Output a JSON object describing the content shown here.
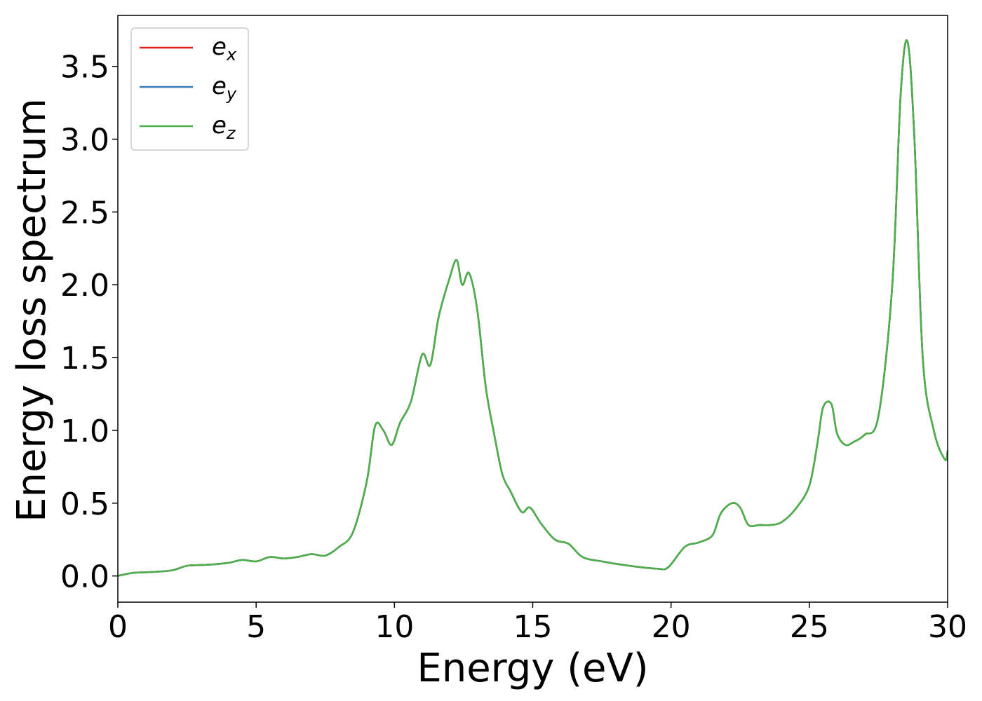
{
  "chart_data": {
    "type": "line",
    "xlabel": "Energy (eV)",
    "ylabel": "Energy loss spectrum",
    "xlim": [
      0,
      30
    ],
    "ylim": [
      -0.18,
      3.85
    ],
    "xticks": [
      0,
      5,
      10,
      15,
      20,
      25,
      30
    ],
    "xtick_labels": [
      "0",
      "5",
      "10",
      "15",
      "20",
      "25",
      "30"
    ],
    "yticks": [
      0.0,
      0.5,
      1.0,
      1.5,
      2.0,
      2.5,
      3.0,
      3.5
    ],
    "ytick_labels": [
      "0.0",
      "0.5",
      "1.0",
      "1.5",
      "2.0",
      "2.5",
      "3.0",
      "3.5"
    ],
    "grid": false,
    "legend_position": "top-left",
    "x": [
      0,
      0.5,
      1,
      1.5,
      2,
      2.5,
      3,
      3.5,
      4,
      4.5,
      5,
      5.5,
      6,
      6.5,
      7,
      7.5,
      8,
      8.5,
      9,
      9.3,
      9.6,
      9.9,
      10.2,
      10.6,
      11,
      11.3,
      11.6,
      12,
      12.25,
      12.45,
      12.7,
      13,
      13.3,
      13.6,
      13.9,
      14.2,
      14.6,
      14.9,
      15.3,
      15.8,
      16.3,
      16.8,
      17.5,
      18.5,
      19.5,
      19.9,
      20.5,
      21,
      21.5,
      21.8,
      22.2,
      22.5,
      22.8,
      23.2,
      23.6,
      24,
      24.5,
      25,
      25.3,
      25.5,
      25.8,
      26,
      26.3,
      26.6,
      27,
      27.5,
      28,
      28.3,
      28.55,
      28.8,
      29.1,
      29.5,
      29.9,
      30
    ],
    "series": [
      {
        "name": "e_x",
        "color": "#e41a1c",
        "values": [
          0.0,
          0.02,
          0.025,
          0.03,
          0.04,
          0.07,
          0.075,
          0.08,
          0.09,
          0.11,
          0.1,
          0.13,
          0.12,
          0.13,
          0.15,
          0.14,
          0.2,
          0.3,
          0.65,
          1.03,
          1.0,
          0.9,
          1.05,
          1.2,
          1.52,
          1.45,
          1.78,
          2.05,
          2.17,
          2.0,
          2.08,
          1.82,
          1.3,
          0.98,
          0.7,
          0.58,
          0.44,
          0.47,
          0.36,
          0.25,
          0.22,
          0.13,
          0.1,
          0.07,
          0.05,
          0.06,
          0.2,
          0.23,
          0.28,
          0.43,
          0.5,
          0.47,
          0.35,
          0.35,
          0.35,
          0.37,
          0.46,
          0.62,
          0.92,
          1.16,
          1.18,
          0.98,
          0.9,
          0.92,
          0.97,
          1.1,
          2.0,
          3.3,
          3.67,
          3.0,
          1.5,
          1.0,
          0.8,
          0.86
        ]
      },
      {
        "name": "e_y",
        "color": "#377eb8",
        "values": [
          0.0,
          0.02,
          0.025,
          0.03,
          0.04,
          0.07,
          0.075,
          0.08,
          0.09,
          0.11,
          0.1,
          0.13,
          0.12,
          0.13,
          0.15,
          0.14,
          0.2,
          0.3,
          0.65,
          1.03,
          1.0,
          0.9,
          1.05,
          1.2,
          1.52,
          1.45,
          1.78,
          2.05,
          2.17,
          2.0,
          2.08,
          1.82,
          1.3,
          0.98,
          0.7,
          0.58,
          0.44,
          0.47,
          0.36,
          0.25,
          0.22,
          0.13,
          0.1,
          0.07,
          0.05,
          0.06,
          0.2,
          0.23,
          0.28,
          0.43,
          0.5,
          0.47,
          0.35,
          0.35,
          0.35,
          0.37,
          0.46,
          0.62,
          0.92,
          1.16,
          1.18,
          0.98,
          0.9,
          0.92,
          0.97,
          1.1,
          2.0,
          3.3,
          3.67,
          3.0,
          1.5,
          1.0,
          0.8,
          0.86
        ]
      },
      {
        "name": "e_z",
        "color": "#4daf4a",
        "values": [
          0.0,
          0.02,
          0.025,
          0.03,
          0.04,
          0.07,
          0.075,
          0.08,
          0.09,
          0.11,
          0.1,
          0.13,
          0.12,
          0.13,
          0.15,
          0.14,
          0.2,
          0.3,
          0.65,
          1.03,
          1.0,
          0.9,
          1.05,
          1.2,
          1.52,
          1.45,
          1.78,
          2.05,
          2.17,
          2.0,
          2.08,
          1.82,
          1.3,
          0.98,
          0.7,
          0.58,
          0.44,
          0.47,
          0.36,
          0.25,
          0.22,
          0.13,
          0.1,
          0.07,
          0.05,
          0.06,
          0.2,
          0.23,
          0.28,
          0.43,
          0.5,
          0.47,
          0.35,
          0.35,
          0.35,
          0.37,
          0.46,
          0.62,
          0.92,
          1.16,
          1.18,
          0.98,
          0.9,
          0.92,
          0.97,
          1.1,
          2.0,
          3.3,
          3.67,
          3.0,
          1.5,
          1.0,
          0.8,
          0.86
        ]
      }
    ],
    "legend": [
      {
        "base": "e",
        "sub": "x",
        "color": "#e41a1c"
      },
      {
        "base": "e",
        "sub": "y",
        "color": "#377eb8"
      },
      {
        "base": "e",
        "sub": "z",
        "color": "#4daf4a"
      }
    ]
  }
}
